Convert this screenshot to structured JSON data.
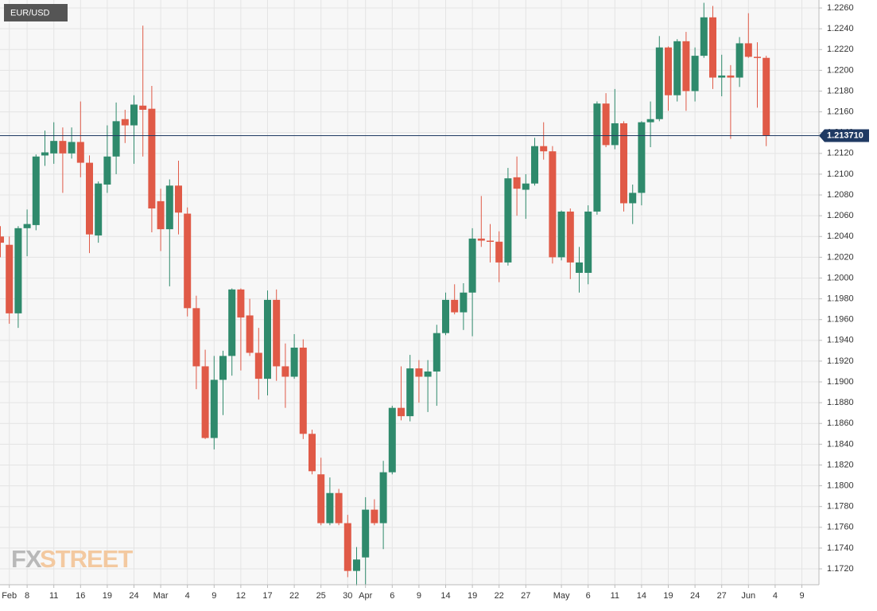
{
  "chart_data": {
    "type": "candlestick",
    "title": "EUR/USD",
    "watermark": [
      "FX",
      "STREET"
    ],
    "categories": [
      null,
      "Feb",
      null,
      "8",
      null,
      null,
      "11",
      null,
      null,
      "16",
      null,
      null,
      "19",
      null,
      null,
      "24",
      null,
      null,
      "Mar",
      null,
      null,
      "4",
      null,
      null,
      "9",
      null,
      null,
      "12",
      null,
      null,
      "17",
      null,
      null,
      "22",
      null,
      null,
      "25",
      null,
      null,
      "30",
      null,
      "Apr",
      null,
      null,
      "6",
      null,
      null,
      "9",
      null,
      null,
      "14",
      null,
      null,
      "19",
      null,
      null,
      "22",
      null,
      null,
      "27",
      null,
      null,
      null,
      "May",
      null,
      null,
      "6",
      null,
      null,
      "11",
      null,
      null,
      "14",
      null,
      null,
      "19",
      null,
      null,
      "24",
      null,
      null,
      "27",
      null,
      null,
      "Jun",
      null,
      null,
      "4",
      null,
      null,
      "9",
      null
    ],
    "open": [
      1.204,
      1.2032,
      1.1966,
      1.2048,
      1.2051,
      1.2118,
      1.212,
      1.2132,
      1.212,
      1.2131,
      1.2111,
      1.2041,
      1.209,
      1.2117,
      1.2153,
      1.2147,
      1.2166,
      1.2163,
      1.2074,
      1.2047,
      1.2089,
      1.2062,
      1.1971,
      1.1915,
      1.1846,
      1.1902,
      1.1925,
      1.1989,
      1.1964,
      1.1928,
      1.1903,
      1.1979,
      1.1915,
      1.1905,
      1.1933,
      1.185,
      1.1811,
      1.1764,
      1.1793,
      1.1764,
      1.1718,
      1.1731,
      1.1777,
      1.1764,
      1.1813,
      1.1875,
      1.1867,
      1.1913,
      1.1905,
      1.191,
      1.1947,
      1.1979,
      1.1967,
      1.1986,
      1.2038,
      1.2036,
      1.2035,
      1.2015,
      1.2097,
      1.2085,
      1.2091,
      1.2127,
      1.2122,
      1.202,
      1.2064,
      1.2005,
      1.2005,
      1.2064,
      1.2168,
      1.2128,
      1.2149,
      1.2072,
      1.2082,
      1.215,
      1.2153,
      1.2222,
      1.2176,
      1.2228,
      1.218,
      1.2214,
      1.2251,
      1.2193,
      1.2195,
      1.2193,
      1.2226,
      1.2213,
      1.2212,
      null,
      null,
      null,
      null,
      null
    ],
    "high": [
      1.205,
      1.204,
      1.205,
      1.2066,
      1.2119,
      1.2142,
      1.215,
      1.2145,
      1.2145,
      1.217,
      1.2118,
      1.2093,
      1.2147,
      1.2169,
      1.2162,
      1.2176,
      1.2243,
      1.2185,
      1.2086,
      1.2095,
      1.2113,
      1.2068,
      1.1983,
      1.1931,
      1.1925,
      1.193,
      1.199,
      1.199,
      1.198,
      1.1952,
      1.1988,
      1.1989,
      1.1937,
      1.1946,
      1.1941,
      1.1854,
      1.1827,
      1.1808,
      1.1797,
      1.1772,
      1.1741,
      1.1789,
      1.1787,
      1.1824,
      1.1877,
      1.1915,
      1.1926,
      1.1921,
      1.1921,
      1.1955,
      1.1986,
      1.1994,
      1.1995,
      1.2048,
      1.2079,
      1.2052,
      1.2045,
      1.2106,
      1.2117,
      1.21,
      1.2135,
      1.215,
      1.2127,
      1.2065,
      1.2067,
      1.203,
      1.207,
      1.217,
      1.2178,
      1.2182,
      1.2151,
      1.209,
      1.2151,
      1.217,
      1.2233,
      1.2223,
      1.223,
      1.2237,
      1.2222,
      1.2265,
      1.2262,
      1.2215,
      1.2205,
      1.2232,
      1.2255,
      1.2227,
      1.2214,
      null,
      null,
      null,
      null,
      null
    ],
    "low": [
      1.202,
      1.1956,
      1.1952,
      1.2021,
      1.2046,
      1.2108,
      1.211,
      1.2082,
      1.2115,
      1.2097,
      1.2024,
      1.2034,
      1.2082,
      1.21,
      1.213,
      1.211,
      1.2117,
      1.2044,
      1.2026,
      1.1992,
      1.2042,
      1.1963,
      1.1893,
      1.1845,
      1.1835,
      1.1868,
      1.1906,
      1.1911,
      1.1925,
      1.1883,
      1.1887,
      1.1901,
      1.1875,
      1.1903,
      1.1845,
      1.1811,
      1.1762,
      1.1762,
      1.1762,
      1.1712,
      1.1704,
      1.1705,
      1.1762,
      1.1739,
      1.1811,
      1.1863,
      1.1862,
      1.188,
      1.1871,
      1.1877,
      1.1945,
      1.1965,
      1.195,
      1.1944,
      1.203,
      1.2015,
      1.1996,
      1.2012,
      1.206,
      1.2057,
      1.2089,
      1.2114,
      1.2014,
      1.2017,
      1.1999,
      1.1986,
      1.1994,
      1.2061,
      1.2126,
      1.2124,
      1.2064,
      1.2052,
      1.207,
      1.2126,
      1.2151,
      1.2161,
      1.217,
      1.2161,
      1.217,
      1.2212,
      1.2182,
      1.2175,
      1.2134,
      1.2184,
      1.2212,
      1.2164,
      1.2127,
      null,
      null,
      null,
      null,
      null
    ],
    "close": [
      1.2034,
      1.1966,
      1.2048,
      1.2052,
      1.2117,
      1.2121,
      1.2132,
      1.212,
      1.2131,
      1.2111,
      1.2042,
      1.2091,
      1.2117,
      1.2151,
      1.2147,
      1.2167,
      1.2162,
      1.2067,
      1.2047,
      1.2089,
      1.2063,
      1.1971,
      1.1915,
      1.1846,
      1.1902,
      1.1925,
      1.1989,
      1.1962,
      1.1928,
      1.1903,
      1.1979,
      1.1915,
      1.1905,
      1.1933,
      1.185,
      1.1814,
      1.1764,
      1.1793,
      1.1764,
      1.1718,
      1.1729,
      1.1777,
      1.1764,
      1.1813,
      1.1875,
      1.1867,
      1.1913,
      1.1905,
      1.191,
      1.1947,
      1.1979,
      1.1967,
      1.1986,
      1.2038,
      1.2036,
      1.2035,
      1.2015,
      1.2096,
      1.2086,
      1.2091,
      1.2127,
      1.2122,
      1.202,
      1.2064,
      1.2015,
      1.2015,
      1.2064,
      1.2168,
      1.2128,
      1.2149,
      1.2072,
      1.2082,
      1.215,
      1.2153,
      1.2222,
      1.2176,
      1.2228,
      1.218,
      1.2214,
      1.2251,
      1.2193,
      1.2195,
      1.2193,
      1.2226,
      1.2213,
      1.2212,
      1.21371,
      null,
      null,
      null,
      null,
      null
    ],
    "up_color": "#2f8a6c",
    "down_color": "#e05a47",
    "last_price": {
      "value": 1.21371,
      "label": "1.213710"
    },
    "last_price_color": "#1f3a63",
    "ylim": [
      1.17047,
      1.22677
    ],
    "yticks": [
      {
        "value": 1.226,
        "label": "1.2260"
      },
      {
        "value": 1.224,
        "label": "1.2240"
      },
      {
        "value": 1.222,
        "label": "1.2220"
      },
      {
        "value": 1.22,
        "label": "1.2200"
      },
      {
        "value": 1.218,
        "label": "1.2180"
      },
      {
        "value": 1.216,
        "label": "1.2160"
      },
      {
        "value": 1.214,
        "label": "1.2140"
      },
      {
        "value": 1.212,
        "label": "1.2120"
      },
      {
        "value": 1.21,
        "label": "1.2100"
      },
      {
        "value": 1.208,
        "label": "1.2080"
      },
      {
        "value": 1.206,
        "label": "1.2060"
      },
      {
        "value": 1.204,
        "label": "1.2040"
      },
      {
        "value": 1.202,
        "label": "1.2020"
      },
      {
        "value": 1.2,
        "label": "1.2000"
      },
      {
        "value": 1.198,
        "label": "1.1980"
      },
      {
        "value": 1.196,
        "label": "1.1960"
      },
      {
        "value": 1.194,
        "label": "1.1940"
      },
      {
        "value": 1.192,
        "label": "1.1920"
      },
      {
        "value": 1.19,
        "label": "1.1900"
      },
      {
        "value": 1.188,
        "label": "1.1880"
      },
      {
        "value": 1.186,
        "label": "1.1860"
      },
      {
        "value": 1.184,
        "label": "1.1840"
      },
      {
        "value": 1.182,
        "label": "1.1820"
      },
      {
        "value": 1.18,
        "label": "1.1800"
      },
      {
        "value": 1.178,
        "label": "1.1780"
      },
      {
        "value": 1.176,
        "label": "1.1760"
      },
      {
        "value": 1.174,
        "label": "1.1740"
      },
      {
        "value": 1.172,
        "label": "1.1720"
      }
    ],
    "grid": true
  }
}
